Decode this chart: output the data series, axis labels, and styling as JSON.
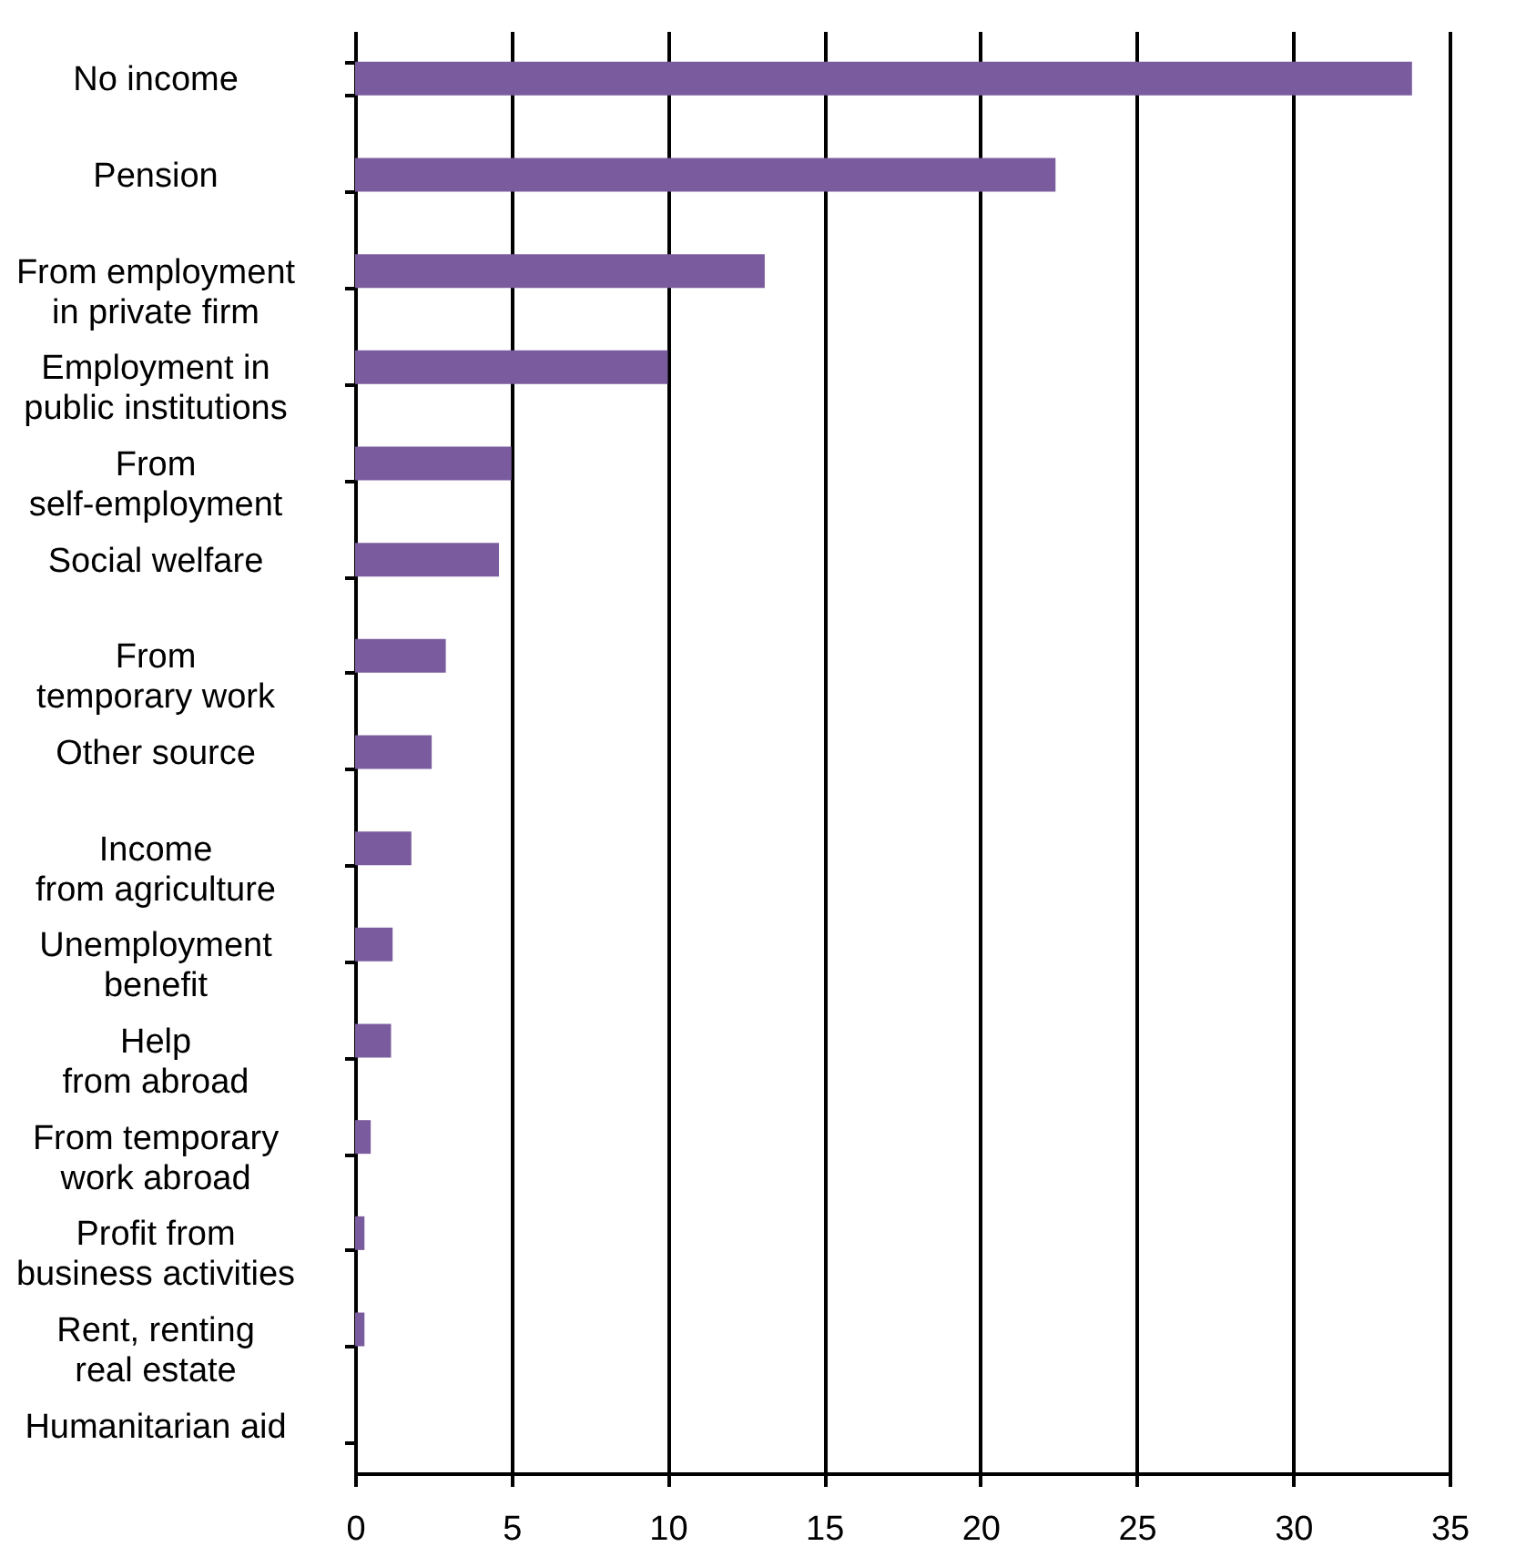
{
  "chart_data": {
    "type": "bar",
    "orientation": "horizontal",
    "categories": [
      "No income",
      "Pension",
      "From employment\nin private firm",
      "Employment in\npublic institutions",
      "From\nself-employment",
      "Social welfare",
      "From\ntemporary work",
      "Other source",
      "Income\nfrom agriculture",
      "Unemployment\nbenefit",
      "Help\nfrom abroad",
      "From temporary\nwork abroad",
      "Profit from\nbusiness activities",
      "Rent, renting\nreal estate",
      "Humanitarian aid"
    ],
    "values": [
      33.8,
      22.4,
      13.1,
      10,
      5,
      4.6,
      2.9,
      2.45,
      1.8,
      1.2,
      1.15,
      0.5,
      0.3,
      0.3,
      0
    ],
    "color": "#7a5c9e",
    "xlim": [
      0,
      35
    ],
    "xticks": [
      0,
      5,
      10,
      15,
      20,
      25,
      30,
      35
    ],
    "grid": "x"
  }
}
